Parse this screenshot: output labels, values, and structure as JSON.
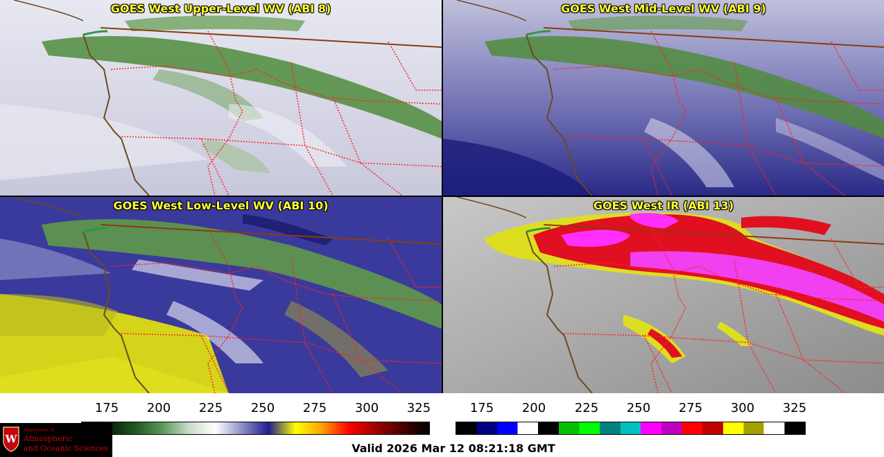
{
  "panels": [
    {
      "id": "p1",
      "title": "GOES West Upper-Level WV (ABI 8)",
      "background": "#d6d6e6"
    },
    {
      "id": "p2",
      "title": "GOES West Mid-Level WV (ABI 9)",
      "background": "#7a7ab8"
    },
    {
      "id": "p3",
      "title": "GOES West Low-Level WV (ABI 10)",
      "background": "#34349a"
    },
    {
      "id": "p4",
      "title": "GOES West IR (ABI 13)",
      "background": "#b4b4b4"
    }
  ],
  "colorbar_wv": {
    "ticks": [
      "175",
      "200",
      "225",
      "250",
      "275",
      "300",
      "325"
    ],
    "stops": [
      "#000000",
      "#0a1e0a",
      "#1e5a1e",
      "#5a965a",
      "#c8dcc8",
      "#ffffff",
      "#8c8cc8",
      "#1e1e8c",
      "#ffff00",
      "#ffa000",
      "#ff0000",
      "#a00000",
      "#4a0000",
      "#000000"
    ]
  },
  "colorbar_ir": {
    "ticks": [
      "175",
      "200",
      "225",
      "250",
      "275",
      "300",
      "325"
    ],
    "segments": [
      "#000000",
      "#000080",
      "#0000ff",
      "#ffffff",
      "#000000",
      "#00c000",
      "#00ff00",
      "#008080",
      "#00c0c0",
      "#ff00ff",
      "#c000c0",
      "#ff0000",
      "#c00000",
      "#ffff00",
      "#a0a000",
      "#ffffff",
      "#000000"
    ]
  },
  "logo": {
    "line1": "Department of",
    "line2": "Atmospheric",
    "line3": "and Oceanic Sciences"
  },
  "valid_text": "Valid 2026 Mar 12 08:21:18 GMT",
  "colors": {
    "title": "#ffff33",
    "coast": "#6b4a1f",
    "state_border": "#ff2020",
    "intl_border": "#8b3a0f"
  }
}
